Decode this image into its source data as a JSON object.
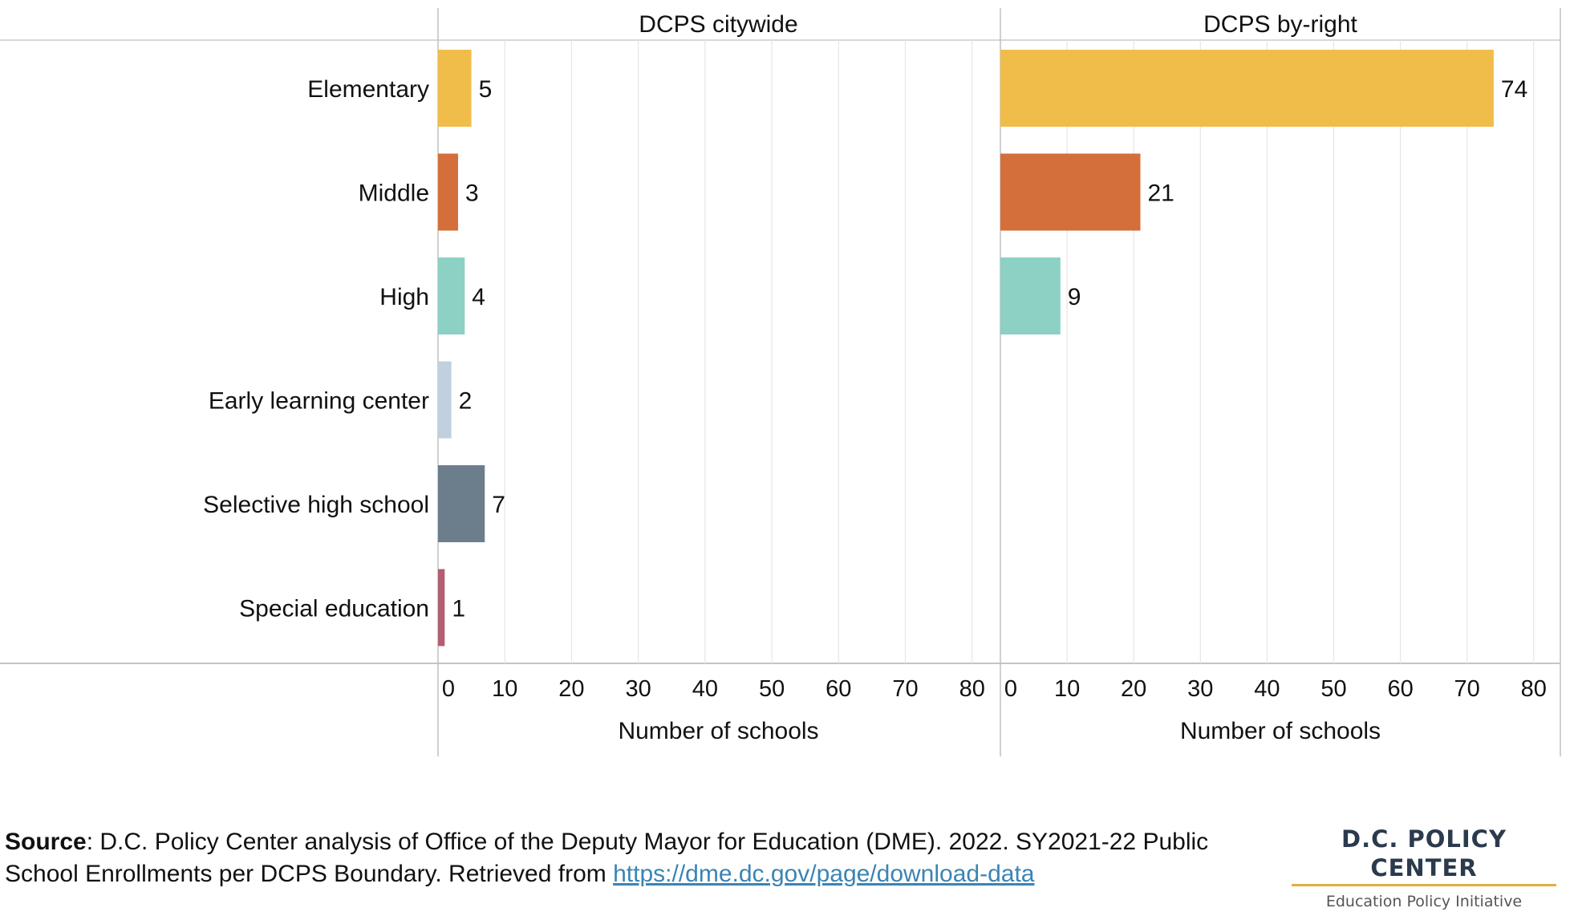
{
  "chart_data": {
    "type": "bar",
    "orientation": "horizontal",
    "categories": [
      "Elementary",
      "Middle",
      "High",
      "Early learning center",
      "Selective high school",
      "Special education"
    ],
    "colors": [
      "#f0bd4a",
      "#d46e3a",
      "#8cd1c4",
      "#c1d0df",
      "#6c7d8c",
      "#b35e72"
    ],
    "grid": true,
    "panels": [
      {
        "title": "DCPS citywide",
        "values": [
          5,
          3,
          4,
          2,
          7,
          1
        ],
        "xlabel": "Number of schools",
        "xlim": [
          0,
          84
        ],
        "ticks": [
          0,
          10,
          20,
          30,
          40,
          50,
          60,
          70,
          80
        ]
      },
      {
        "title": "DCPS by-right",
        "values": [
          74,
          21,
          9,
          null,
          null,
          null
        ],
        "xlabel": "Number of schools",
        "xlim": [
          0,
          84
        ],
        "ticks": [
          0,
          10,
          20,
          30,
          40,
          50,
          60,
          70,
          80
        ]
      }
    ]
  },
  "footer": {
    "source_label": "Source",
    "source_text": ": D.C. Policy Center analysis of Office of the Deputy Mayor for Education (DME). 2022. SY2021-22 Public School Enrollments per DCPS Boundary. Retrieved from ",
    "source_link": "https://dme.dc.gov/page/download-data"
  },
  "logo": {
    "title": "D.C. POLICY CENTER",
    "subtitle": "Education Policy Initiative",
    "accent_color": "#e0b13f"
  }
}
